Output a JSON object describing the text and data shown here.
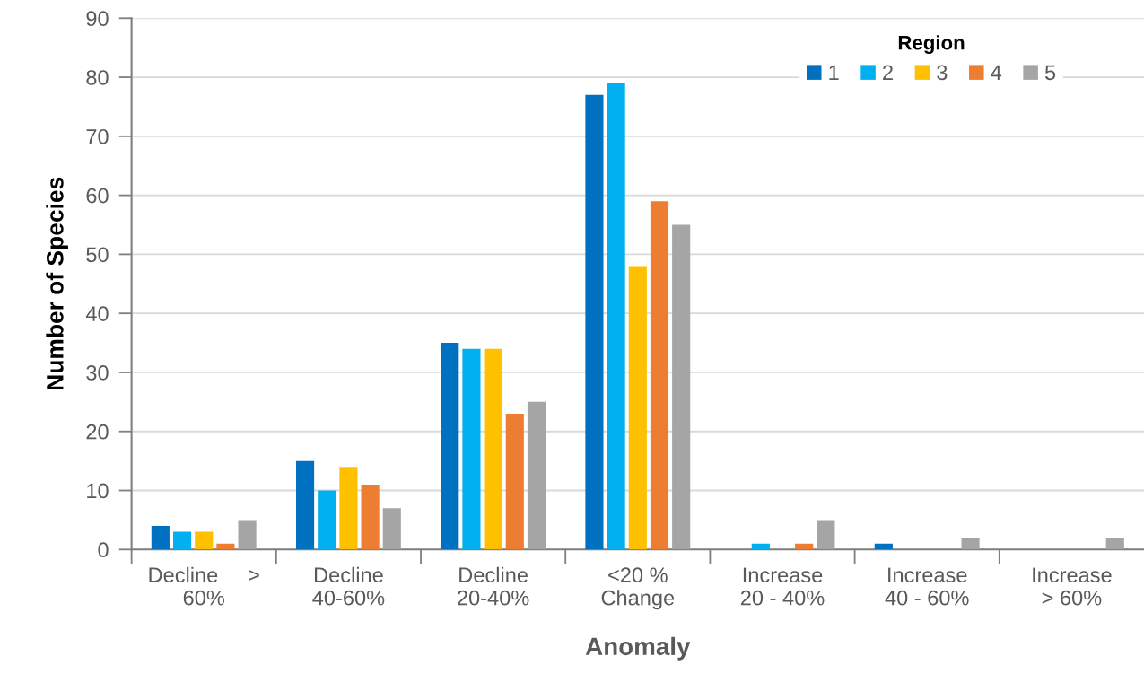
{
  "chart_data": {
    "type": "bar",
    "categories": [
      "Decline     >\n60%",
      "Decline\n40-60%",
      "Decline\n20-40%",
      "<20 %\nChange",
      "Increase\n20 - 40%",
      "Increase\n40 - 60%",
      "Increase\n> 60%"
    ],
    "series": [
      {
        "name": "1",
        "color": "#0070c0",
        "values": [
          4,
          15,
          35,
          77,
          0,
          1,
          0
        ]
      },
      {
        "name": "2",
        "color": "#00b0f0",
        "values": [
          3,
          10,
          34,
          79,
          1,
          0,
          0
        ]
      },
      {
        "name": "3",
        "color": "#ffc000",
        "values": [
          3,
          14,
          34,
          48,
          0,
          0,
          0
        ]
      },
      {
        "name": "4",
        "color": "#ed7d31",
        "values": [
          1,
          11,
          23,
          59,
          1,
          0,
          0
        ]
      },
      {
        "name": "5",
        "color": "#a5a5a5",
        "values": [
          5,
          7,
          25,
          55,
          5,
          2,
          2
        ]
      }
    ],
    "xlabel": "Anomaly",
    "ylabel": "Number of Species",
    "legend_title": "Region",
    "ylim": [
      0,
      90
    ],
    "yticks": [
      0,
      10,
      20,
      30,
      40,
      50,
      60,
      70,
      80,
      90
    ],
    "grid": "y",
    "legend": "top right"
  }
}
